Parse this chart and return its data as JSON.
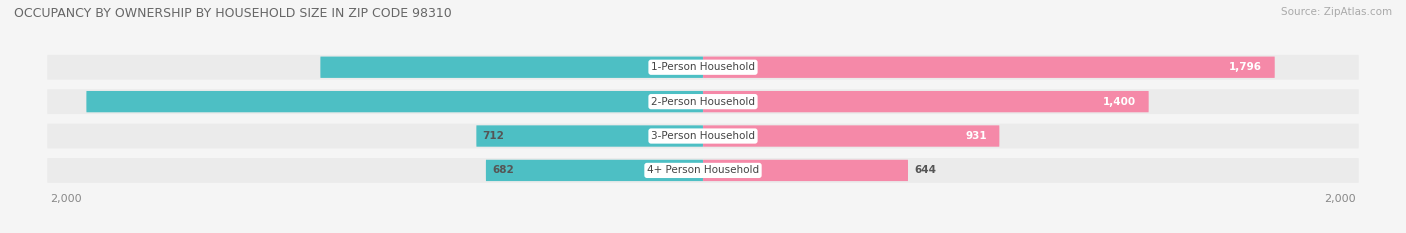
{
  "title": "OCCUPANCY BY OWNERSHIP BY HOUSEHOLD SIZE IN ZIP CODE 98310",
  "source": "Source: ZipAtlas.com",
  "categories": [
    "1-Person Household",
    "2-Person Household",
    "3-Person Household",
    "4+ Person Household"
  ],
  "owner_values": [
    1202,
    1937,
    712,
    682
  ],
  "renter_values": [
    1796,
    1400,
    931,
    644
  ],
  "max_value": 2000,
  "owner_color": "#4dbfc4",
  "renter_color": "#f589a8",
  "bar_bg_color": "#e8e8e8",
  "background_color": "#f5f5f5",
  "row_bg_color": "#ebebeb",
  "title_fontsize": 9,
  "source_fontsize": 7.5,
  "bar_label_fontsize": 7.5,
  "category_fontsize": 7.5,
  "axis_label_fontsize": 8,
  "legend_fontsize": 8
}
